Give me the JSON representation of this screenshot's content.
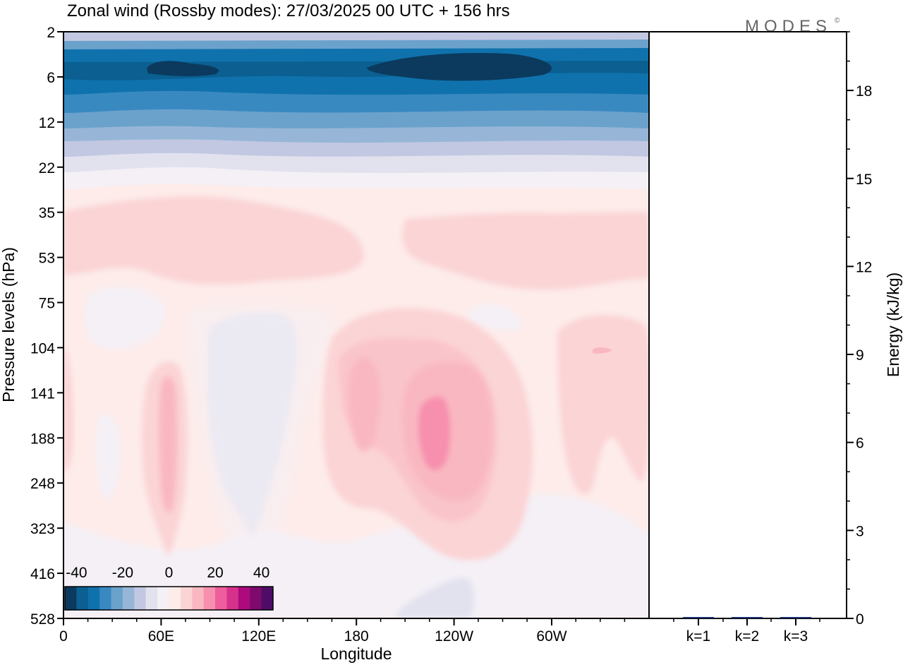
{
  "chart_data": [
    {
      "type": "heatmap",
      "title": "Zonal wind (Rossby modes):  27/03/2025  00 UTC  + 156 hrs",
      "xlabel": "Longitude",
      "ylabel": "Pressure levels (hPa)",
      "x_ticks": [
        "0",
        "60E",
        "120E",
        "180",
        "120W",
        "60W"
      ],
      "y_levels": [
        "2",
        "6",
        "12",
        "22",
        "35",
        "53",
        "75",
        "104",
        "141",
        "188",
        "248",
        "323",
        "416",
        "528"
      ],
      "colorbar": {
        "tick_labels": [
          "-40",
          "-20",
          "0",
          "20",
          "40"
        ],
        "range": [
          -45,
          45
        ],
        "step": 5,
        "colors": [
          "#0b3a5e",
          "#0b5f91",
          "#0f72ad",
          "#3989c1",
          "#6ba2cc",
          "#97b6d7",
          "#c2c8e2",
          "#e2e2ef",
          "#f4f0f6",
          "#fdecea",
          "#fbd4d6",
          "#f9b8c1",
          "#f78fae",
          "#ee5d9c",
          "#d6328c",
          "#ad0a7d",
          "#7e0a6e",
          "#4f0c66"
        ]
      },
      "features": [
        {
          "name": "stratospheric easterlies",
          "lon": [
            0,
            360
          ],
          "hpa": [
            2,
            22
          ],
          "value": -40
        },
        {
          "name": "stratospheric core west",
          "lon": [
            35,
            70
          ],
          "hpa": [
            5,
            7
          ],
          "value": -45
        },
        {
          "name": "stratospheric core east",
          "lon": [
            190,
            290
          ],
          "hpa": [
            4.5,
            8
          ],
          "value": -45
        },
        {
          "name": "westerly band west",
          "lon": [
            0,
            185
          ],
          "hpa": [
            33,
            62
          ],
          "value": 10
        },
        {
          "name": "westerly band east",
          "lon": [
            210,
            360
          ],
          "hpa": [
            35,
            60
          ],
          "value": 10
        },
        {
          "name": "easterly column",
          "lon": [
            90,
            135
          ],
          "hpa": [
            100,
            360
          ],
          "value": -3
        },
        {
          "name": "westerly jet 60E",
          "lon": [
            60,
            70
          ],
          "hpa": [
            130,
            300
          ],
          "value": 15
        },
        {
          "name": "westerly jet 170E",
          "lon": [
            175,
            195
          ],
          "hpa": [
            105,
            190
          ],
          "value": 15
        },
        {
          "name": "westerly jet 120W",
          "lon": [
            225,
            250
          ],
          "hpa": [
            125,
            230
          ],
          "value": 25
        },
        {
          "name": "westerly jet 60W",
          "lon": [
            325,
            360
          ],
          "hpa": [
            100,
            270
          ],
          "value": 10
        },
        {
          "name": "surface easterly patch",
          "lon": [
            205,
            255
          ],
          "hpa": [
            440,
            528
          ],
          "value": -5
        }
      ]
    },
    {
      "type": "bar",
      "categories": [
        "k=1",
        "k=2",
        "k=3"
      ],
      "values": [
        0.02,
        0.01,
        0.01
      ],
      "ylabel": "Energy (kJ/kg)",
      "ylim": [
        0,
        20
      ],
      "y_ticks": [
        "0",
        "3",
        "6",
        "9",
        "12",
        "15",
        "18"
      ]
    }
  ],
  "logo": "MODES",
  "logo_mark": "©"
}
